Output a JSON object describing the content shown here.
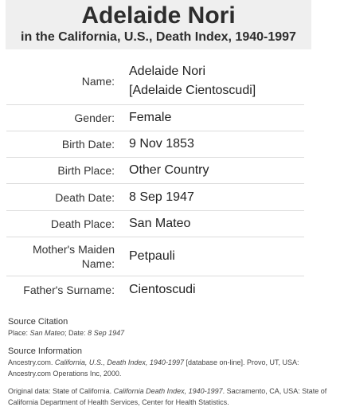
{
  "header": {
    "name": "Adelaide Nori",
    "subtitle": "in the California, U.S., Death Index, 1940-1997"
  },
  "fields": [
    {
      "label": "Name:",
      "value": "Adelaide Nori",
      "value2": "[Adelaide Cientoscudi]"
    },
    {
      "label": "Gender:",
      "value": "Female"
    },
    {
      "label": "Birth Date:",
      "value": "9 Nov 1853"
    },
    {
      "label": "Birth Place:",
      "value": "Other Country"
    },
    {
      "label": "Death Date:",
      "value": "8 Sep 1947"
    },
    {
      "label": "Death Place:",
      "value": "San Mateo"
    },
    {
      "label": "Mother's Maiden Name:",
      "value": "Petpauli"
    },
    {
      "label": "Father's Surname:",
      "value": "Cientoscudi"
    }
  ],
  "source_citation": {
    "heading": "Source Citation",
    "place_label": "Place: ",
    "place": "San Mateo",
    "date_label": "; Date: ",
    "date": "8 Sep 1947"
  },
  "source_information": {
    "heading": "Source Information",
    "prefix": "Ancestry.com. ",
    "title": "California, U.S., Death Index, 1940-1997",
    "rest": " [database on-line]. Provo, UT, USA: Ancestry.com Operations Inc, 2000."
  },
  "original_data": {
    "prefix": "Original data: State of California. ",
    "title": "California Death Index, 1940-1997",
    "rest": ". Sacramento, CA, USA: State of California Department of Health Services, Center for Health Statistics."
  }
}
